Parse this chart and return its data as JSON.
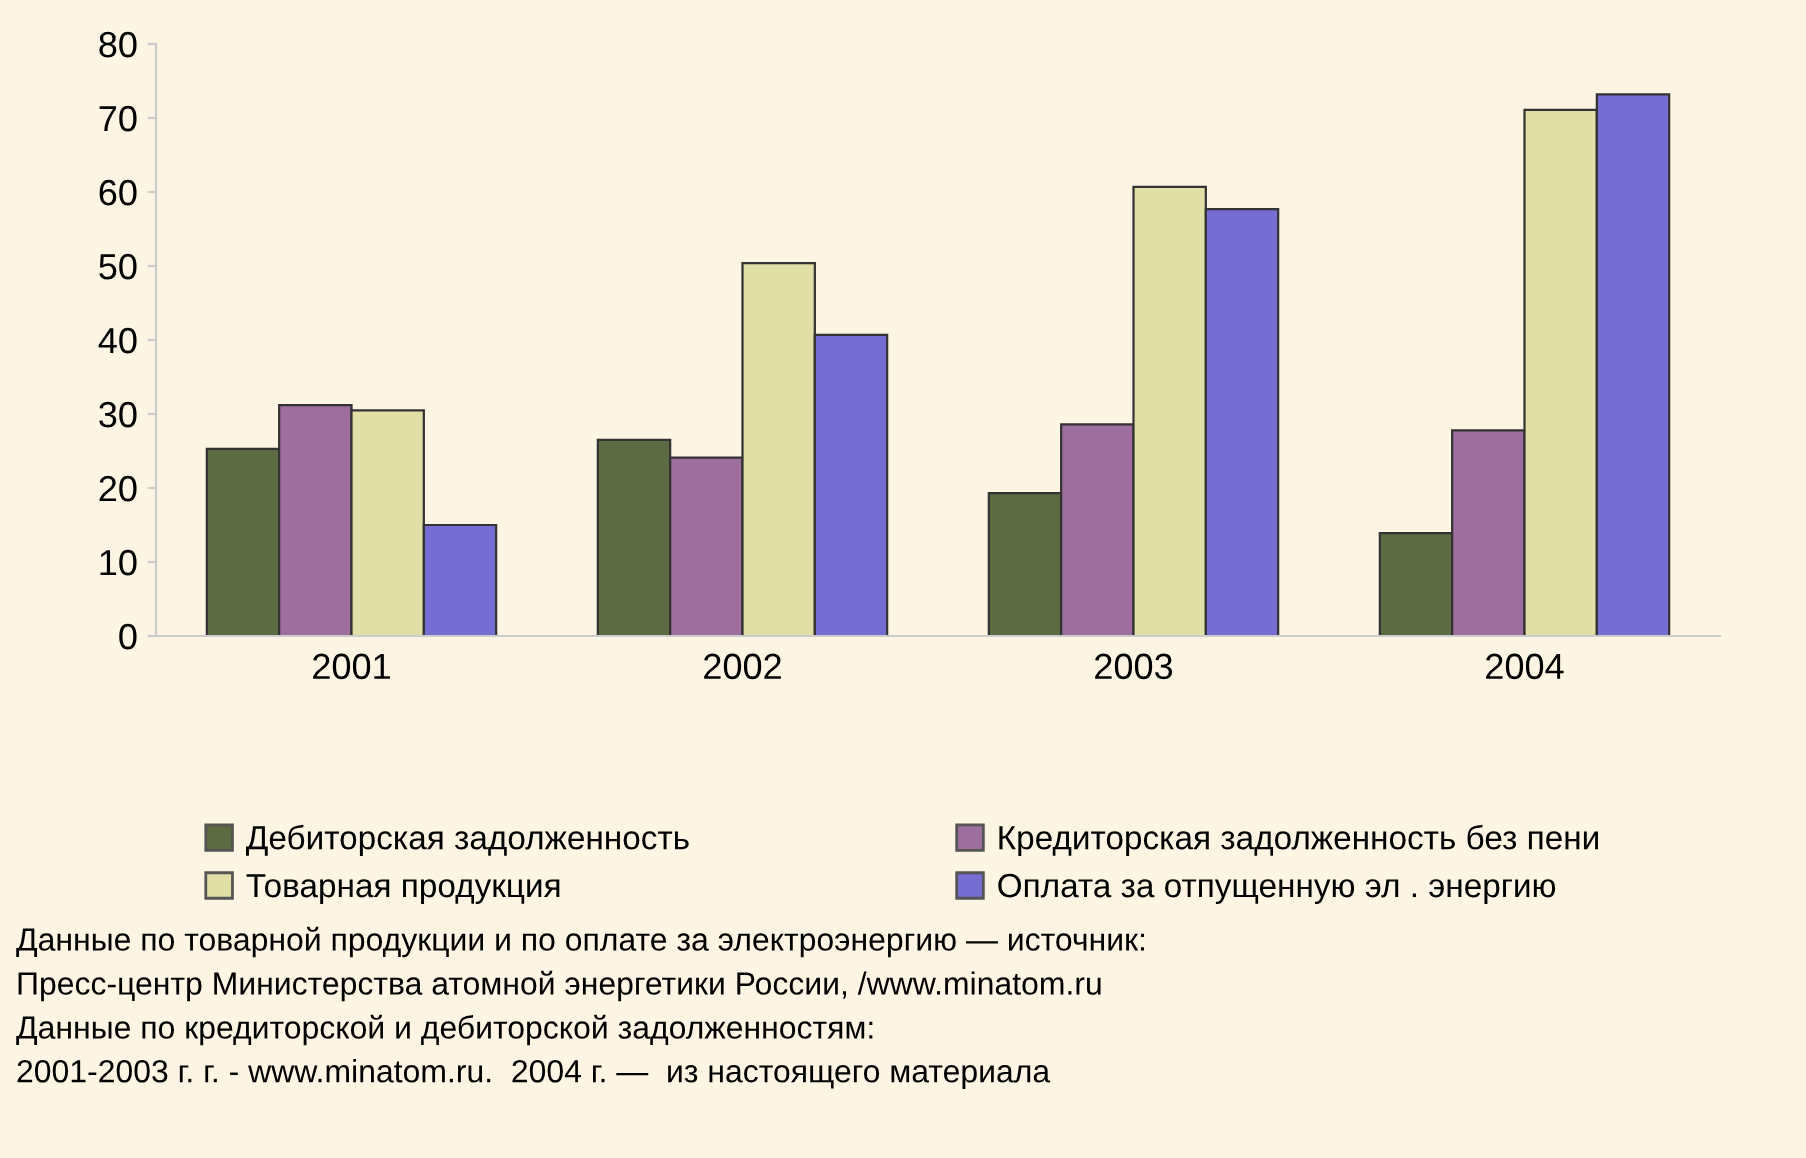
{
  "chart_data": {
    "type": "bar",
    "categories": [
      "2001",
      "2002",
      "2003",
      "2004"
    ],
    "series": [
      {
        "name": "Дебиторская задолженность",
        "color": "#5d6b42",
        "values": [
          25.3,
          26.5,
          19.3,
          13.9
        ]
      },
      {
        "name": "Кредиторская задолженность без пени",
        "color": "#9e6f9e",
        "values": [
          31.2,
          24.1,
          28.6,
          27.8
        ]
      },
      {
        "name": "Товарная продукция",
        "color": "#dfdfa6",
        "values": [
          30.5,
          50.4,
          60.7,
          71.1
        ]
      },
      {
        "name": "Оплата за отпущенную эл . энергию",
        "color": "#756dd1",
        "values": [
          15.0,
          40.7,
          57.7,
          73.2
        ]
      }
    ],
    "ylim": [
      0,
      80
    ],
    "yticks": [
      0,
      10,
      20,
      30,
      40,
      50,
      60,
      70,
      80
    ],
    "grid": false,
    "legend": "bottom",
    "annotations": [
      "Данные по товарной продукции и по оплате за электроэнергию — источник:",
      "Пресс-центр Министерства атомной энергетики России, /www.minatom.ru",
      "Данные по кредиторской и дебиторской задолженностям:",
      "2001-2003 г. г. - www.minatom.ru.  2004 г. —  из настоящего материала"
    ]
  }
}
